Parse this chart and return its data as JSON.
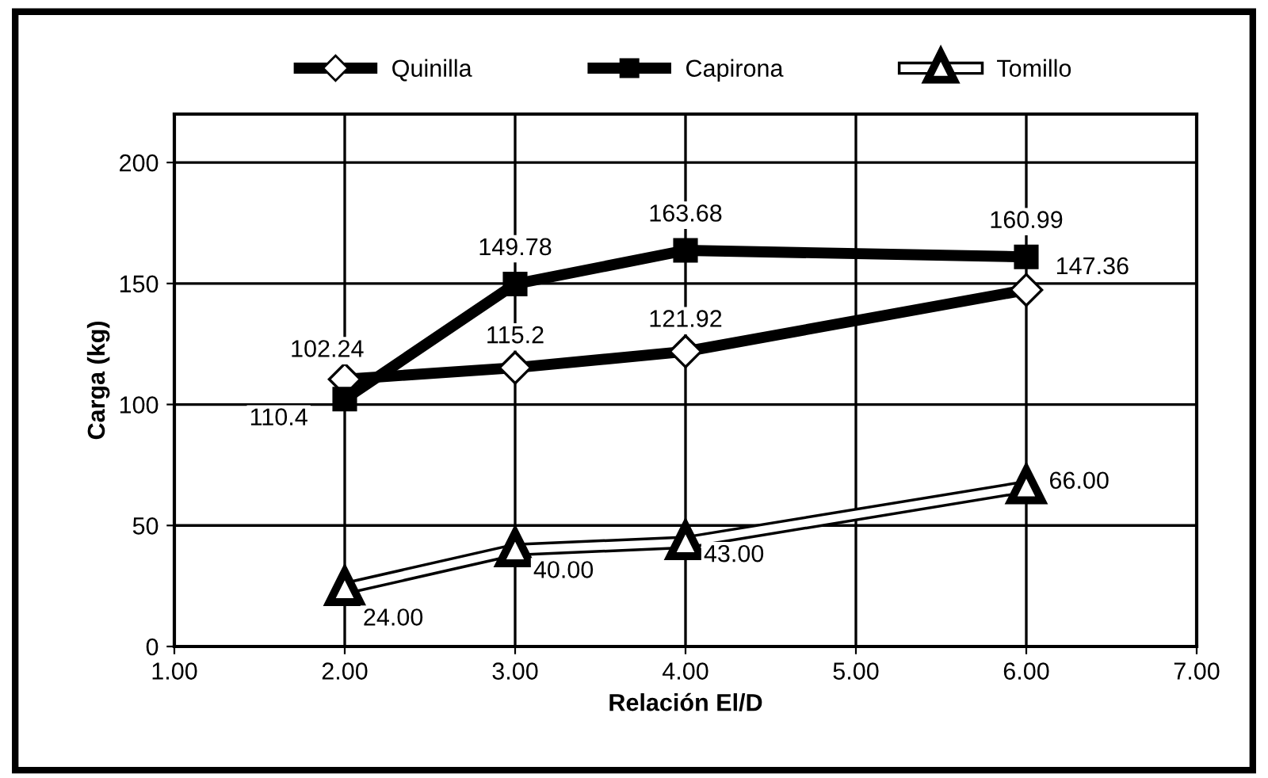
{
  "chart_data": {
    "type": "line",
    "xlabel": "Relación El/D",
    "ylabel": "Carga (kg)",
    "x": [
      2,
      3,
      4,
      6
    ],
    "series": [
      {
        "name": "Quinilla",
        "color": "#000000",
        "marker": "diamond",
        "values": [
          110.4,
          115.2,
          121.92,
          147.36
        ],
        "value_labels": [
          "110.4",
          "115.2",
          "121.92",
          "147.36"
        ]
      },
      {
        "name": "Capirona",
        "color": "#000000",
        "marker": "square",
        "values": [
          102.24,
          149.78,
          163.68,
          160.99
        ],
        "value_labels": [
          "102.24",
          "149.78",
          "163.68",
          "160.99"
        ]
      },
      {
        "name": "Tomillo",
        "color": "#ffffff",
        "marker": "triangle",
        "values": [
          24,
          40,
          43,
          66
        ],
        "value_labels": [
          "24.00",
          "40.00",
          "43.00",
          "66.00"
        ]
      }
    ],
    "xlim": [
      1,
      7
    ],
    "xticks": [
      {
        "value": 1,
        "label": "1.00"
      },
      {
        "value": 2,
        "label": "2.00"
      },
      {
        "value": 3,
        "label": "3.00"
      },
      {
        "value": 4,
        "label": "4.00"
      },
      {
        "value": 5,
        "label": "5.00"
      },
      {
        "value": 6,
        "label": "6.00"
      },
      {
        "value": 7,
        "label": "7.00"
      }
    ],
    "ylim": [
      0,
      220
    ],
    "yticks": [
      0,
      50,
      100,
      150,
      200
    ],
    "grid": true,
    "legend": "top",
    "line_style": "solid"
  }
}
